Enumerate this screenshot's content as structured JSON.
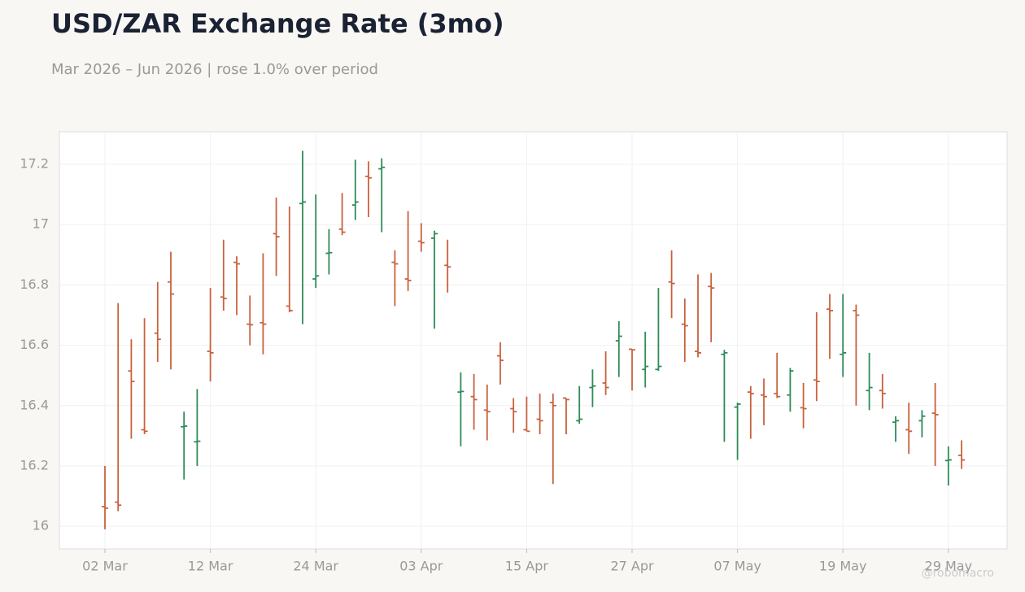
{
  "chart_data": {
    "type": "ohlc",
    "title": "USD/ZAR Exchange Rate (3mo)",
    "subtitle": "Mar 2026 – Jun 2026 | rose 1.0% over period",
    "watermark": "@robomacro",
    "up_color": "#2e8b57",
    "down_color": "#c8623c",
    "grid": true,
    "categories": [
      "02 Mar",
      null,
      null,
      null,
      null,
      null,
      null,
      null,
      "12 Mar",
      null,
      null,
      null,
      null,
      null,
      null,
      null,
      "24 Mar",
      null,
      null,
      null,
      null,
      null,
      null,
      null,
      "03 Apr",
      null,
      null,
      null,
      null,
      null,
      null,
      null,
      "15 Apr",
      null,
      null,
      null,
      null,
      null,
      null,
      null,
      "27 Apr",
      null,
      null,
      null,
      null,
      null,
      null,
      null,
      "07 May",
      null,
      null,
      null,
      null,
      null,
      null,
      null,
      "19 May",
      null,
      null,
      null,
      null,
      null,
      null,
      null,
      "29 May",
      null
    ],
    "open": [
      16.065,
      16.08,
      16.515,
      16.32,
      16.64,
      16.81,
      16.33,
      16.28,
      16.58,
      16.76,
      16.875,
      16.67,
      16.675,
      16.97,
      16.73,
      17.07,
      16.82,
      16.905,
      16.985,
      17.065,
      17.16,
      17.185,
      16.875,
      16.82,
      16.945,
      16.955,
      16.865,
      16.445,
      16.43,
      16.385,
      16.565,
      16.39,
      16.32,
      16.355,
      16.41,
      16.425,
      16.35,
      16.46,
      16.475,
      16.615,
      16.587,
      16.52,
      16.52,
      16.81,
      16.67,
      16.58,
      16.795,
      16.57,
      16.395,
      16.445,
      16.435,
      16.44,
      16.435,
      16.393,
      16.485,
      16.72,
      16.57,
      16.715,
      16.45,
      16.45,
      16.345,
      16.32,
      16.35,
      16.375,
      16.218,
      16.235
    ],
    "high": [
      16.2,
      16.74,
      16.62,
      16.69,
      16.81,
      16.91,
      16.38,
      16.455,
      16.79,
      16.95,
      16.895,
      16.765,
      16.905,
      17.09,
      17.06,
      17.245,
      17.1,
      16.985,
      17.105,
      17.215,
      17.21,
      17.22,
      16.915,
      17.045,
      17.005,
      16.98,
      16.95,
      16.51,
      16.505,
      16.47,
      16.61,
      16.425,
      16.43,
      16.44,
      16.44,
      16.425,
      16.465,
      16.52,
      16.58,
      16.68,
      16.585,
      16.645,
      16.79,
      16.915,
      16.755,
      16.835,
      16.84,
      16.585,
      16.41,
      16.465,
      16.49,
      16.575,
      16.525,
      16.475,
      16.71,
      16.77,
      16.77,
      16.735,
      16.575,
      16.505,
      16.365,
      16.41,
      16.385,
      16.475,
      16.265,
      16.285
    ],
    "low": [
      15.99,
      16.05,
      16.29,
      16.305,
      16.545,
      16.52,
      16.155,
      16.2,
      16.48,
      16.715,
      16.7,
      16.6,
      16.57,
      16.83,
      16.71,
      16.67,
      16.79,
      16.835,
      16.965,
      17.015,
      17.025,
      16.975,
      16.73,
      16.78,
      16.91,
      16.655,
      16.775,
      16.265,
      16.32,
      16.285,
      16.47,
      16.31,
      16.315,
      16.305,
      16.14,
      16.305,
      16.34,
      16.395,
      16.435,
      16.495,
      16.45,
      16.46,
      16.515,
      16.69,
      16.545,
      16.56,
      16.61,
      16.28,
      16.22,
      16.29,
      16.335,
      16.425,
      16.38,
      16.325,
      16.415,
      16.555,
      16.495,
      16.4,
      16.385,
      16.39,
      16.28,
      16.24,
      16.295,
      16.2,
      16.135,
      16.19
    ],
    "close": [
      16.06,
      16.07,
      16.48,
      16.315,
      16.62,
      16.77,
      16.332,
      16.282,
      16.575,
      16.755,
      16.87,
      16.668,
      16.67,
      16.96,
      16.715,
      17.075,
      16.83,
      16.907,
      16.975,
      17.075,
      17.155,
      17.19,
      16.87,
      16.815,
      16.94,
      16.97,
      16.86,
      16.447,
      16.42,
      16.38,
      16.55,
      16.38,
      16.315,
      16.35,
      16.4,
      16.42,
      16.355,
      16.465,
      16.46,
      16.63,
      16.585,
      16.53,
      16.53,
      16.805,
      16.665,
      16.575,
      16.79,
      16.575,
      16.405,
      16.44,
      16.43,
      16.43,
      16.515,
      16.39,
      16.48,
      16.715,
      16.575,
      16.7,
      16.46,
      16.44,
      16.35,
      16.315,
      16.365,
      16.37,
      16.22,
      16.22
    ],
    "ylim": [
      15.925,
      17.308
    ],
    "yticks": [
      16,
      16.2,
      16.4,
      16.6,
      16.8,
      17,
      17.2
    ]
  }
}
